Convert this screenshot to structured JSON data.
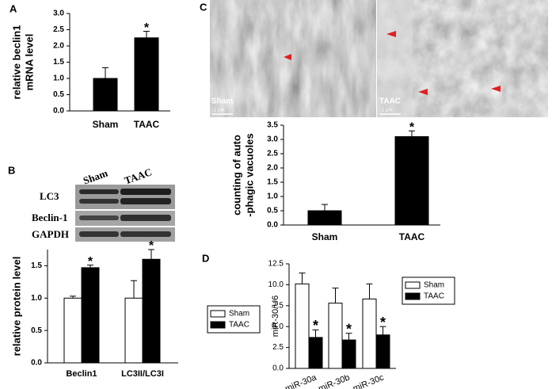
{
  "chart_data": [
    {
      "type": "bar",
      "panel": "A",
      "ylabel": [
        "relative beclin1",
        "mRNA level"
      ],
      "categories": [
        "Sham",
        "TAAC"
      ],
      "values": [
        1.0,
        2.25
      ],
      "errors": [
        0.33,
        0.2
      ],
      "color": "#000000",
      "ylim": [
        0,
        3
      ],
      "yticks": [
        {
          "value": 0,
          "label": "0.0"
        },
        0.5,
        {
          "value": 1,
          "label": "1.0"
        },
        1.5,
        {
          "value": 2,
          "label": "2.0"
        },
        2.5,
        {
          "value": 3,
          "label": "3.0"
        }
      ],
      "annotations": [
        "*"
      ]
    },
    {
      "type": "bar",
      "ylabel": "relative protein level",
      "categories": [
        "Beclin1",
        "LC3II/LC3I"
      ],
      "series": [
        {
          "name": "Sham",
          "color": "#ffffff",
          "values": [
            1.0,
            1.0
          ],
          "errors": [
            0.03,
            0.27
          ]
        },
        {
          "name": "TAAC",
          "color": "#000000",
          "values": [
            1.47,
            1.6
          ],
          "errors": [
            0.04,
            0.15
          ]
        }
      ],
      "ylim": [
        0,
        1.75
      ],
      "yticks": [
        {
          "value": 0,
          "label": "0.0"
        },
        0.5,
        {
          "value": 1,
          "label": "1.0"
        },
        1.5
      ],
      "legend": "right",
      "annotations": [
        "*",
        "*"
      ]
    },
    {
      "type": "bar",
      "ylabel": [
        "counting of auto",
        "-phagic vacuoles"
      ],
      "categories": [
        "Sham",
        "TAAC"
      ],
      "values": [
        0.5,
        3.1
      ],
      "errors": [
        0.22,
        0.2
      ],
      "color": "#000000",
      "ylim": [
        0,
        3.5
      ],
      "yticks": [
        {
          "value": 0,
          "label": "0.0"
        },
        0.5,
        {
          "value": 1,
          "label": "1.0"
        },
        1.5,
        {
          "value": 2,
          "label": "2.0"
        },
        2.5,
        {
          "value": 3,
          "label": "3.0"
        },
        3.5
      ],
      "annotations": [
        "*"
      ]
    },
    {
      "type": "bar",
      "panel": "D",
      "ylabel": "miR-30/U6",
      "categories": [
        "miR-30a",
        "miR-30b",
        "miR-30c"
      ],
      "series": [
        {
          "name": "Sham",
          "color": "#ffffff",
          "values": [
            10.1,
            7.8,
            8.3
          ],
          "errors": [
            1.3,
            1.8,
            1.8
          ]
        },
        {
          "name": "TAAC",
          "color": "#000000",
          "values": [
            3.7,
            3.4,
            4.0
          ],
          "errors": [
            0.9,
            0.8,
            1.0
          ]
        }
      ],
      "ylim": [
        0,
        12.5
      ],
      "yticks": [
        {
          "value": 0,
          "label": "0.0"
        },
        2.5,
        {
          "value": 5,
          "label": "5.0"
        },
        7.5,
        {
          "value": 10,
          "label": "10.0"
        },
        12.5
      ],
      "legend": "right",
      "annotations": [
        "*",
        "*",
        "*"
      ]
    }
  ],
  "blot": {
    "panel": "B",
    "lanes": [
      "Sham",
      "TAAC"
    ],
    "rows": [
      "LC3",
      "Beclin-1",
      "GAPDH"
    ]
  },
  "micrographs": {
    "panel": "C",
    "labels": [
      "Sham",
      "TAAC"
    ],
    "scale_bar": "1 μm"
  }
}
